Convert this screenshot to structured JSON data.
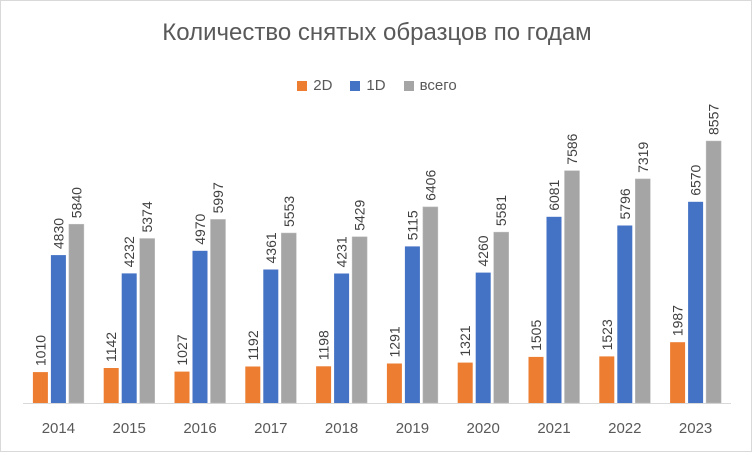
{
  "chart_data": {
    "type": "bar",
    "title": "Количество снятых образцов по годам",
    "categories": [
      "2014",
      "2015",
      "2016",
      "2017",
      "2018",
      "2019",
      "2020",
      "2021",
      "2022",
      "2023"
    ],
    "series": [
      {
        "name": "2D",
        "color": "#ED7D31",
        "values": [
          1010,
          1142,
          1027,
          1192,
          1198,
          1291,
          1321,
          1505,
          1523,
          1987
        ]
      },
      {
        "name": "1D",
        "color": "#4472C4",
        "values": [
          4830,
          4232,
          4970,
          4361,
          4231,
          5115,
          4260,
          6081,
          5796,
          6570
        ]
      },
      {
        "name": "всего",
        "color": "#A5A5A5",
        "values": [
          5840,
          5374,
          5997,
          5553,
          5429,
          6406,
          5581,
          7586,
          7319,
          8557
        ]
      }
    ],
    "ylim": [
      0,
      10000
    ],
    "legend_position": "top",
    "data_labels": "vertical",
    "grid": false
  }
}
